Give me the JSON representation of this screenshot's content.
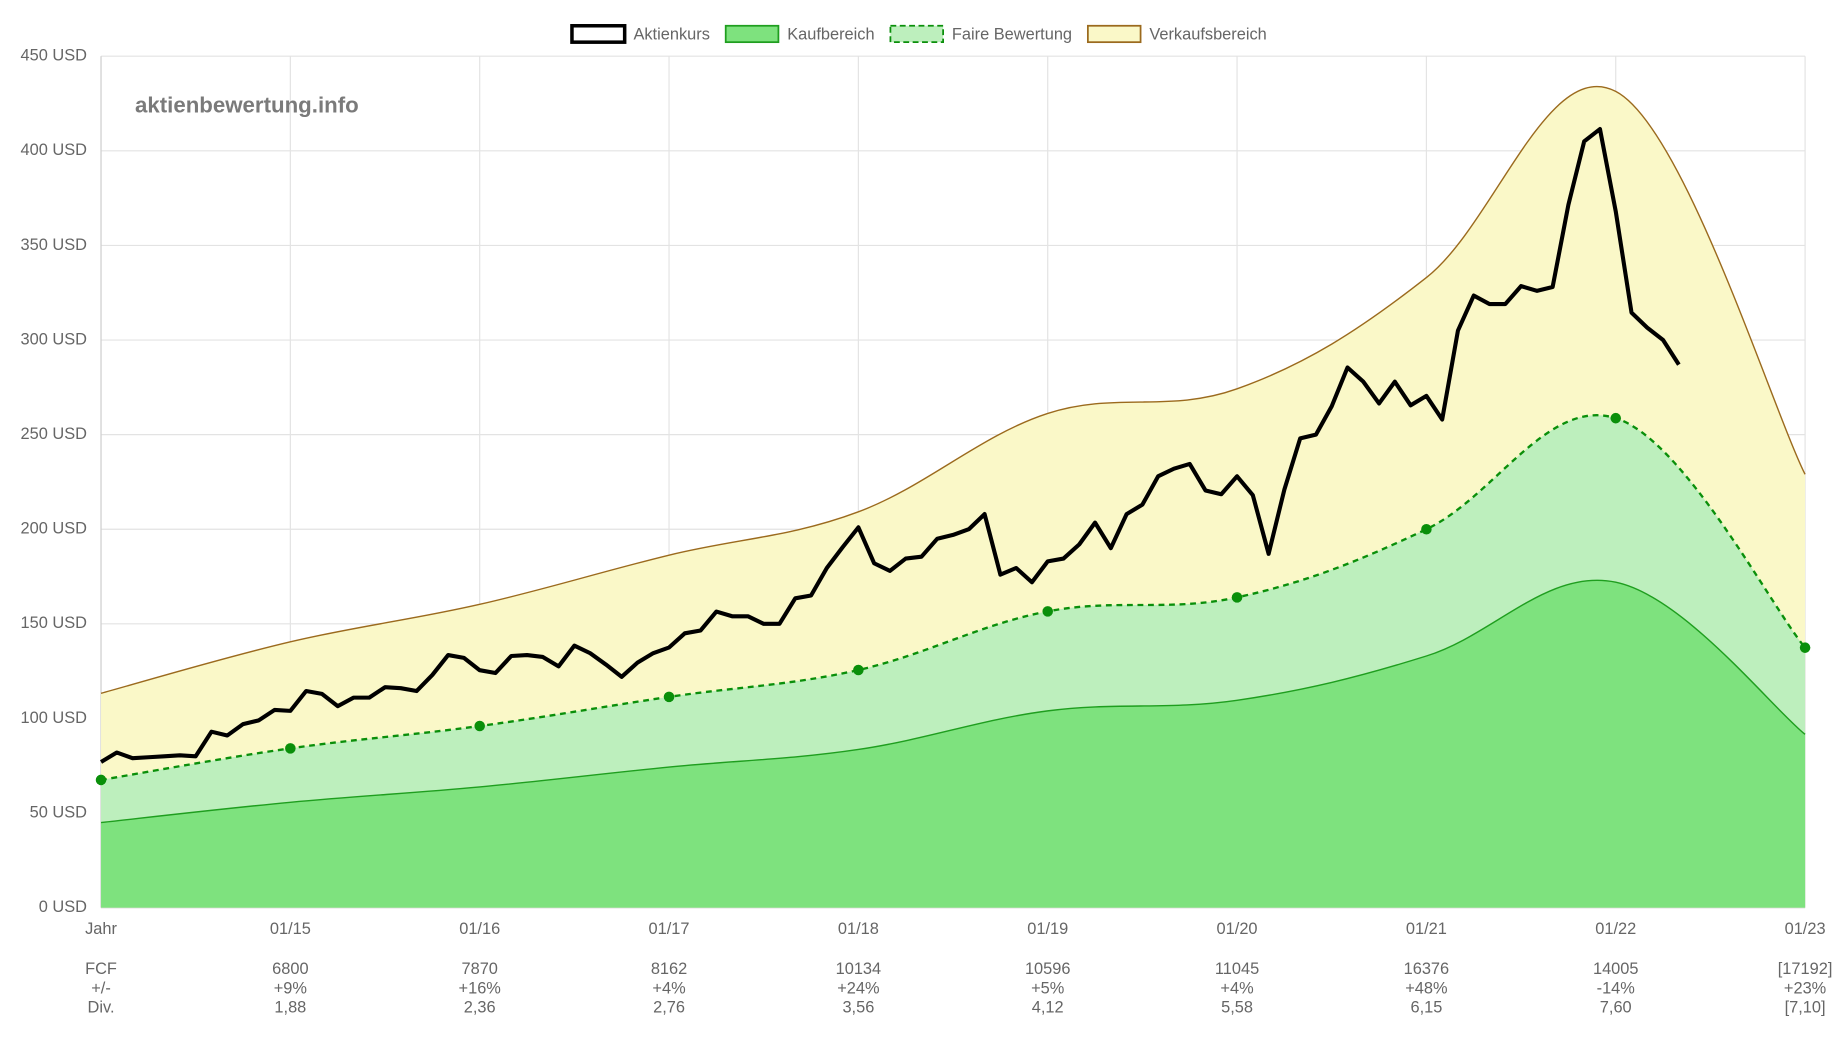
{
  "chart_data": {
    "type": "line",
    "watermark": "aktienbewertung.info",
    "xlim": [
      0,
      108
    ],
    "xticks": [
      {
        "value": 0,
        "label": "Jahr"
      },
      {
        "value": 12,
        "label": "01/15"
      },
      {
        "value": 24,
        "label": "01/16"
      },
      {
        "value": 36,
        "label": "01/17"
      },
      {
        "value": 48,
        "label": "01/18"
      },
      {
        "value": 60,
        "label": "01/19"
      },
      {
        "value": 72,
        "label": "01/20"
      },
      {
        "value": 84,
        "label": "01/21"
      },
      {
        "value": 96,
        "label": "01/22"
      },
      {
        "value": 108,
        "label": "01/23"
      }
    ],
    "ylim": [
      0,
      450
    ],
    "yticks": [
      {
        "value": 0,
        "label": "0 USD"
      },
      {
        "value": 50,
        "label": "50 USD"
      },
      {
        "value": 100,
        "label": "100 USD"
      },
      {
        "value": 150,
        "label": "150 USD"
      },
      {
        "value": 200,
        "label": "200 USD"
      },
      {
        "value": 250,
        "label": "250 USD"
      },
      {
        "value": 300,
        "label": "300 USD"
      },
      {
        "value": 350,
        "label": "350 USD"
      },
      {
        "value": 400,
        "label": "400 USD"
      },
      {
        "value": 450,
        "label": "450 USD"
      }
    ],
    "grid": true,
    "legend": "top",
    "series": [
      {
        "name": "Aktienkurs",
        "type": "line",
        "color": "#000000",
        "x": [
          0,
          1,
          2,
          3,
          4,
          5,
          6,
          7,
          8,
          9,
          10,
          11,
          12,
          13,
          14,
          15,
          16,
          17,
          18,
          19,
          20,
          21,
          22,
          23,
          24,
          25,
          26,
          27,
          28,
          29,
          30,
          31,
          32,
          33,
          34,
          35,
          36,
          37,
          38,
          39,
          40,
          41,
          42,
          43,
          44,
          45,
          46,
          47,
          48,
          49,
          50,
          51,
          52,
          53,
          54,
          55,
          56,
          57,
          58,
          59,
          60,
          61,
          62,
          63,
          64,
          65,
          66,
          67,
          68,
          69,
          70,
          71,
          72,
          73,
          74,
          75,
          76,
          77,
          78,
          79,
          80,
          81,
          82,
          83,
          84,
          85,
          86,
          87,
          88,
          89,
          90,
          91,
          92,
          93,
          94,
          95,
          96,
          97,
          98,
          99,
          100
        ],
        "values": [
          77,
          82,
          79,
          79.5,
          80,
          80.5,
          80,
          93,
          91,
          97,
          99,
          104.5,
          104,
          114.5,
          113,
          106.5,
          111,
          111,
          116.5,
          116,
          114.5,
          123,
          133.5,
          132,
          125.5,
          124,
          133,
          133.5,
          132.5,
          127.5,
          138.5,
          134.5,
          128.5,
          122,
          129.5,
          134.5,
          137.5,
          145,
          146.5,
          156.5,
          154,
          154,
          150,
          150,
          163.5,
          165,
          179.5,
          190.5,
          201,
          182,
          178,
          184.5,
          185.5,
          195,
          197,
          200,
          208,
          176,
          179.5,
          172,
          183,
          184.5,
          192,
          203.5,
          190,
          208,
          213,
          228,
          232,
          234.5,
          220.5,
          218.5,
          228,
          218,
          187,
          221,
          248,
          250,
          265,
          285.5,
          278,
          266.5,
          278,
          265.5,
          270.5,
          258,
          305,
          323.5,
          319,
          319,
          328.5,
          326,
          328,
          371.5,
          405,
          411.5,
          368,
          314.5,
          306.5,
          300,
          287
        ]
      },
      {
        "name": "Kaufbereich",
        "type": "area",
        "color": "#7ee27e",
        "stroke": "#1f9e1f",
        "x": [
          0,
          12,
          24,
          36,
          48,
          60,
          72,
          84,
          96,
          108
        ],
        "values": [
          45,
          55.7,
          63.8,
          74.3,
          83.6,
          104,
          109.6,
          133,
          172,
          91.6
        ]
      },
      {
        "name": "Faire Bewertung",
        "type": "area",
        "color": "#bdefbd",
        "stroke": "#0a8f0a",
        "dashed": true,
        "markers": true,
        "x": [
          0,
          12,
          24,
          36,
          48,
          60,
          72,
          84,
          96,
          108
        ],
        "values": [
          67.5,
          84.2,
          96,
          111.4,
          125.6,
          156.6,
          164,
          200,
          258.7,
          137.4
        ]
      },
      {
        "name": "Verkaufsbereich",
        "type": "area",
        "color": "#faf8c8",
        "stroke": "#9b6a1e",
        "x": [
          0,
          12,
          24,
          36,
          48,
          60,
          72,
          84,
          96,
          108
        ],
        "values": [
          113.3,
          140.5,
          160.3,
          186.3,
          209.2,
          261.2,
          274.2,
          333,
          431.4,
          229
        ]
      }
    ]
  },
  "table": {
    "rows": [
      {
        "label": "FCF",
        "values": [
          "6800",
          "7870",
          "8162",
          "10134",
          "10596",
          "11045",
          "16376",
          "14005",
          "[17192]"
        ]
      },
      {
        "label": "+/-",
        "values": [
          "+9%",
          "+16%",
          "+4%",
          "+24%",
          "+5%",
          "+4%",
          "+48%",
          "-14%",
          "+23%"
        ]
      },
      {
        "label": "Div.",
        "values": [
          "1,88",
          "2,36",
          "2,76",
          "3,56",
          "4,12",
          "5,58",
          "6,15",
          "7,60",
          "[7,10]"
        ]
      }
    ]
  }
}
